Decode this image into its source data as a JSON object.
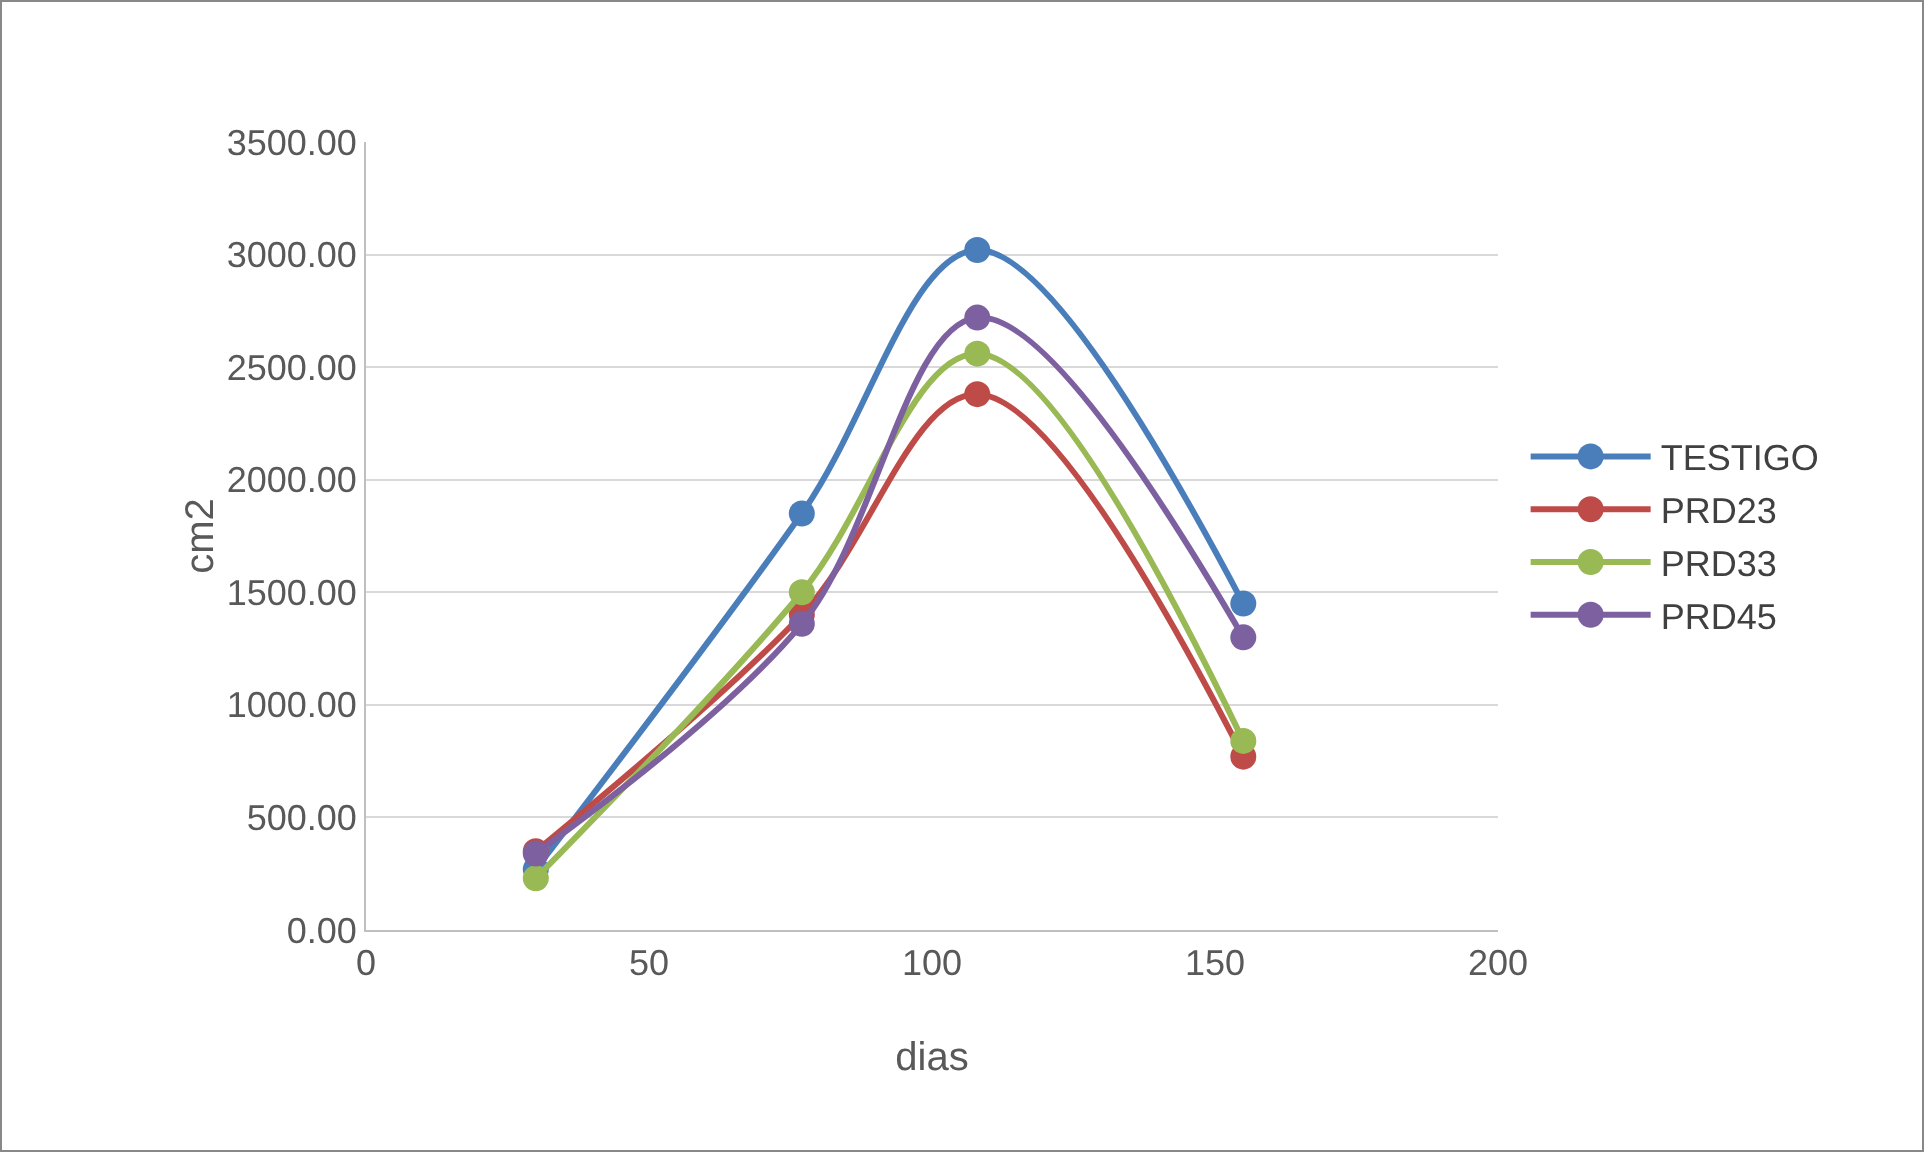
{
  "chart_data": {
    "type": "line",
    "xlabel": "dias",
    "ylabel": "cm2",
    "x": [
      30,
      77,
      108,
      155
    ],
    "series": [
      {
        "name": "TESTIGO",
        "color": "#4a7ebb",
        "values": [
          270,
          1850,
          3020,
          1450
        ]
      },
      {
        "name": "PRD23",
        "color": "#be4b48",
        "values": [
          350,
          1400,
          2380,
          770
        ]
      },
      {
        "name": "PRD33",
        "color": "#98b954",
        "values": [
          230,
          1500,
          2560,
          840
        ]
      },
      {
        "name": "PRD45",
        "color": "#7d60a0",
        "values": [
          340,
          1360,
          2720,
          1300
        ]
      }
    ],
    "xlim": [
      0,
      200
    ],
    "xticks": [
      0,
      50,
      100,
      150,
      200
    ],
    "ylim": [
      0,
      3500
    ],
    "yticks": [
      {
        "value": 0,
        "label": "0.00"
      },
      {
        "value": 500,
        "label": "500.00"
      },
      {
        "value": 1000,
        "label": "1000.00"
      },
      {
        "value": 1500,
        "label": "1500.00"
      },
      {
        "value": 2000,
        "label": "2000.00"
      },
      {
        "value": 2500,
        "label": "2500.00"
      },
      {
        "value": 3000,
        "label": "3000.00"
      },
      {
        "value": 3500,
        "label": "3500.00"
      }
    ],
    "grid": "y",
    "legend": "right",
    "marker": "circle",
    "line_style": "solid"
  }
}
